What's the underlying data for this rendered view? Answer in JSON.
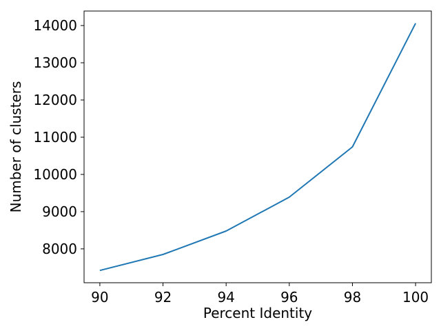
{
  "chart_data": {
    "type": "line",
    "title": "",
    "xlabel": "Percent Identity",
    "ylabel": "Number of clusters",
    "x": [
      90,
      92,
      94,
      96,
      98,
      100
    ],
    "series": [
      {
        "values": [
          7420,
          7850,
          8480,
          9390,
          10740,
          14060
        ]
      }
    ],
    "xlim": [
      89.5,
      100.5
    ],
    "ylim": [
      7090,
      14390
    ],
    "x_ticks": [
      "90",
      "92",
      "94",
      "96",
      "98",
      "100"
    ],
    "x_tick_values": [
      90,
      92,
      94,
      96,
      98,
      100
    ],
    "y_ticks": [
      "8000",
      "9000",
      "10000",
      "11000",
      "12000",
      "13000",
      "14000"
    ],
    "y_tick_values": [
      8000,
      9000,
      10000,
      11000,
      12000,
      13000,
      14000
    ],
    "grid": false,
    "line_color": "#1f77b4"
  }
}
